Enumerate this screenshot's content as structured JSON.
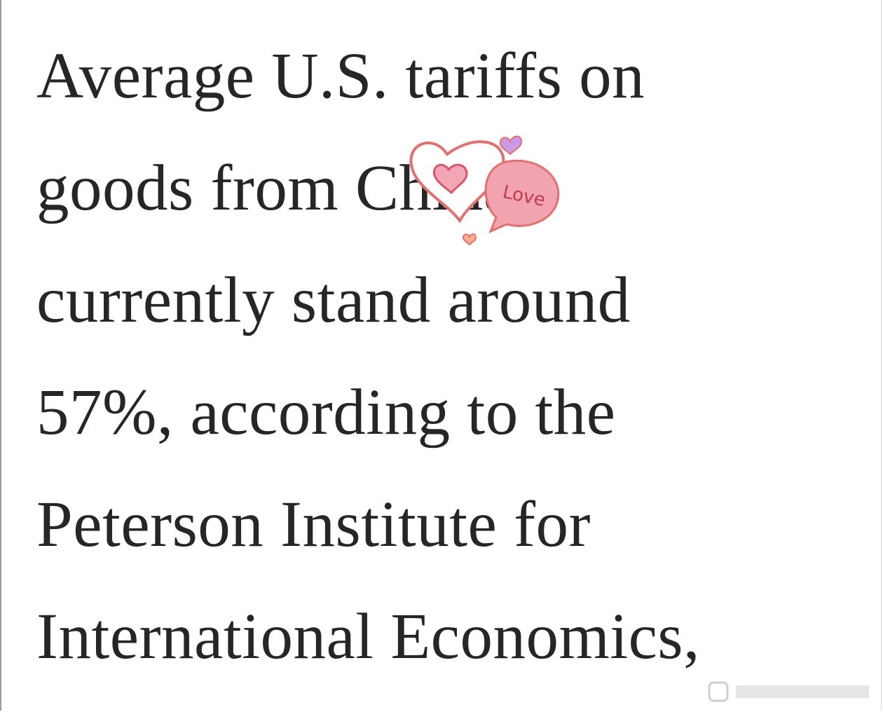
{
  "paragraph": {
    "lines": [
      "Average U.S. tariffs on",
      "goods from China",
      "currently stand around",
      "57%, according to the",
      "Peterson Institute for",
      "International Economics,"
    ]
  },
  "sticker": {
    "text": "Love"
  }
}
